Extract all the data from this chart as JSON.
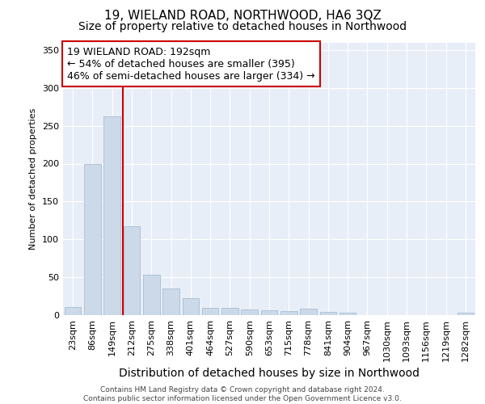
{
  "title": "19, WIELAND ROAD, NORTHWOOD, HA6 3QZ",
  "subtitle": "Size of property relative to detached houses in Northwood",
  "xlabel": "Distribution of detached houses by size in Northwood",
  "ylabel": "Number of detached properties",
  "categories": [
    "23sqm",
    "86sqm",
    "149sqm",
    "212sqm",
    "275sqm",
    "338sqm",
    "401sqm",
    "464sqm",
    "527sqm",
    "590sqm",
    "653sqm",
    "715sqm",
    "778sqm",
    "841sqm",
    "904sqm",
    "967sqm",
    "1030sqm",
    "1093sqm",
    "1156sqm",
    "1219sqm",
    "1282sqm"
  ],
  "values": [
    11,
    200,
    262,
    117,
    53,
    35,
    22,
    10,
    10,
    8,
    6,
    5,
    9,
    4,
    3,
    0,
    0,
    0,
    0,
    0,
    3
  ],
  "bar_color": "#ccd9e8",
  "bar_edge_color": "#a8bdd0",
  "vline_x_index": 2.55,
  "vline_color": "#cc0000",
  "annotation_text": "19 WIELAND ROAD: 192sqm\n← 54% of detached houses are smaller (395)\n46% of semi-detached houses are larger (334) →",
  "annotation_box_color": "#ffffff",
  "annotation_box_edge_color": "#cc0000",
  "ylim": [
    0,
    360
  ],
  "yticks": [
    0,
    50,
    100,
    150,
    200,
    250,
    300,
    350
  ],
  "plot_background": "#e8eef8",
  "grid_color": "#ffffff",
  "footer_text": "Contains HM Land Registry data © Crown copyright and database right 2024.\nContains public sector information licensed under the Open Government Licence v3.0.",
  "title_fontsize": 11,
  "subtitle_fontsize": 10,
  "xlabel_fontsize": 10,
  "ylabel_fontsize": 8,
  "tick_fontsize": 8,
  "footer_fontsize": 6.5
}
